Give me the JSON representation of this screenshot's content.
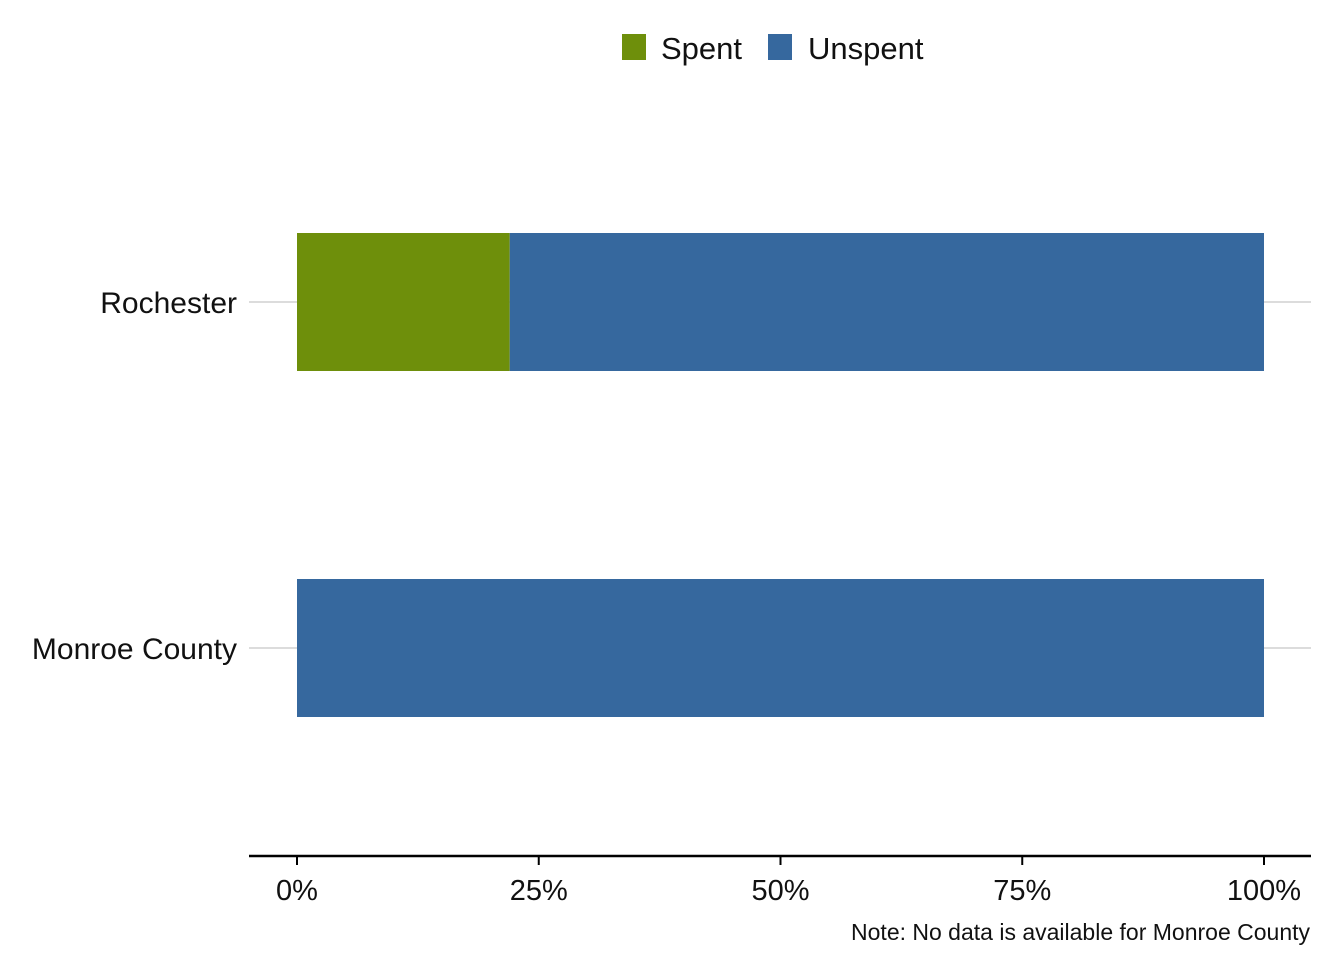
{
  "chart_data": {
    "type": "bar",
    "orientation": "horizontal",
    "stacked": true,
    "percent": true,
    "categories": [
      "Rochester",
      "Monroe County"
    ],
    "series": [
      {
        "name": "Spent",
        "color": "#6e8f0b",
        "values": [
          22,
          0
        ]
      },
      {
        "name": "Unspent",
        "color": "#36689e",
        "values": [
          78,
          100
        ]
      }
    ],
    "xlim": [
      0,
      100
    ],
    "xticks": [
      0,
      25,
      50,
      75,
      100
    ],
    "xtick_labels": [
      "0%",
      "25%",
      "50%",
      "75%",
      "100%"
    ],
    "legend": {
      "position": "top",
      "entries": [
        "Spent",
        "Unspent"
      ]
    },
    "grid": {
      "horizontal_at_categories": true,
      "vertical": false
    },
    "note": "Note: No data is available for Monroe County"
  }
}
